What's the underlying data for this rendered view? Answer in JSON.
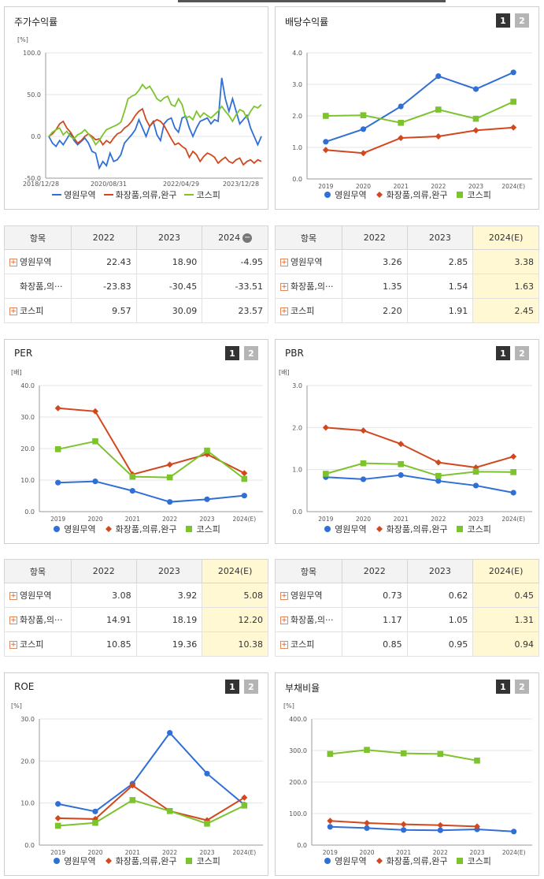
{
  "colors": {
    "s1": "#2f6fd6",
    "s2": "#d2481e",
    "s3": "#7cc32e"
  },
  "legend": [
    "영원무역",
    "화장품,의류,완구",
    "코스피"
  ],
  "buttons": [
    "1",
    "2"
  ],
  "stock": {
    "title": "주가수익률",
    "unit": "[%]",
    "yticks": [
      "100.0",
      "50.0",
      "0.0",
      "-50.0"
    ],
    "xticks": [
      "2018/12/28",
      "2020/08/31",
      "2022/04/29",
      "2023/12/28"
    ],
    "table": {
      "header": [
        "항목",
        "2022",
        "2023",
        "2024"
      ],
      "rows": [
        {
          "name": "영원무역",
          "v": [
            "22.43",
            "18.90",
            "-4.95"
          ]
        },
        {
          "name": "화장품,의···",
          "v": [
            "-23.83",
            "-30.45",
            "-33.51"
          ]
        },
        {
          "name": "코스피",
          "v": [
            "9.57",
            "30.09",
            "23.57"
          ]
        }
      ]
    }
  },
  "div": {
    "title": "배당수익률",
    "table": {
      "header": [
        "항목",
        "2022",
        "2023",
        "2024(E)"
      ],
      "rows": [
        {
          "name": "영원무역",
          "v": [
            "3.26",
            "2.85",
            "3.38"
          ]
        },
        {
          "name": "화장품,의···",
          "v": [
            "1.35",
            "1.54",
            "1.63"
          ]
        },
        {
          "name": "코스피",
          "v": [
            "2.20",
            "1.91",
            "2.45"
          ]
        }
      ]
    }
  },
  "per": {
    "title": "PER",
    "table": {
      "header": [
        "항목",
        "2022",
        "2023",
        "2024(E)"
      ],
      "rows": [
        {
          "name": "영원무역",
          "v": [
            "3.08",
            "3.92",
            "5.08"
          ]
        },
        {
          "name": "화장품,의···",
          "v": [
            "14.91",
            "18.19",
            "12.20"
          ]
        },
        {
          "name": "코스피",
          "v": [
            "10.85",
            "19.36",
            "10.38"
          ]
        }
      ]
    }
  },
  "pbr": {
    "title": "PBR",
    "table": {
      "header": [
        "항목",
        "2022",
        "2023",
        "2024(E)"
      ],
      "rows": [
        {
          "name": "영원무역",
          "v": [
            "0.73",
            "0.62",
            "0.45"
          ]
        },
        {
          "name": "화장품,의···",
          "v": [
            "1.17",
            "1.05",
            "1.31"
          ]
        },
        {
          "name": "코스피",
          "v": [
            "0.85",
            "0.95",
            "0.94"
          ]
        }
      ]
    }
  },
  "roe": {
    "title": "ROE"
  },
  "debt": {
    "title": "부채비율"
  },
  "chart_data": [
    {
      "id": "stock",
      "type": "line",
      "ylabel": "[%]",
      "ylim": [
        -50,
        100
      ],
      "yticks": [
        100,
        50,
        0,
        -50
      ],
      "series": [
        {
          "name": "영원무역",
          "values": [
            0,
            -8,
            -12,
            -5,
            -10,
            -3,
            4,
            -5,
            -10,
            -6,
            -2,
            -8,
            -18,
            -20,
            -38,
            -30,
            -35,
            -20,
            -30,
            -28,
            -22,
            -8,
            -3,
            2,
            8,
            20,
            10,
            0,
            12,
            18,
            2,
            -5,
            15,
            20,
            22,
            10,
            5,
            22,
            24,
            10,
            0,
            10,
            18,
            20,
            22,
            15,
            20,
            18,
            70,
            45,
            30,
            45,
            30,
            15,
            20,
            25,
            10,
            0,
            -10,
            0
          ]
        },
        {
          "name": "화장품,의류,완구",
          "values": [
            0,
            3,
            8,
            15,
            18,
            10,
            5,
            -2,
            -8,
            -5,
            0,
            3,
            0,
            -4,
            -3,
            -10,
            -5,
            -8,
            -2,
            3,
            5,
            10,
            13,
            18,
            25,
            30,
            33,
            20,
            12,
            17,
            20,
            18,
            13,
            5,
            -3,
            -10,
            -8,
            -12,
            -15,
            -25,
            -18,
            -22,
            -30,
            -24,
            -20,
            -22,
            -25,
            -32,
            -28,
            -25,
            -30,
            -32,
            -28,
            -26,
            -34,
            -30,
            -28,
            -32,
            -28,
            -30
          ]
        },
        {
          "name": "코스피",
          "values": [
            0,
            5,
            8,
            10,
            2,
            6,
            0,
            -3,
            2,
            4,
            8,
            3,
            -2,
            -10,
            -5,
            2,
            8,
            10,
            12,
            14,
            17,
            30,
            45,
            48,
            50,
            55,
            62,
            57,
            60,
            53,
            45,
            42,
            46,
            48,
            38,
            36,
            45,
            38,
            22,
            24,
            20,
            30,
            23,
            28,
            25,
            22,
            26,
            30,
            36,
            30,
            25,
            18,
            26,
            32,
            30,
            22,
            30,
            36,
            34,
            38
          ]
        }
      ]
    },
    {
      "id": "div",
      "type": "line",
      "ylim": [
        0,
        4
      ],
      "yticks": [
        4.0,
        3.0,
        2.0,
        1.0,
        0.0
      ],
      "categories": [
        "2019",
        "2020",
        "2021",
        "2022",
        "2023",
        "2024(E)"
      ],
      "series": [
        {
          "name": "영원무역",
          "values": [
            1.18,
            1.58,
            2.3,
            3.26,
            2.85,
            3.38
          ]
        },
        {
          "name": "화장품,의류,완구",
          "values": [
            0.92,
            0.82,
            1.3,
            1.35,
            1.54,
            1.63
          ]
        },
        {
          "name": "코스피",
          "values": [
            2.0,
            2.02,
            1.78,
            2.2,
            1.91,
            2.45
          ]
        }
      ]
    },
    {
      "id": "per",
      "type": "line",
      "ylabel": "[배]",
      "ylim": [
        0,
        40
      ],
      "yticks": [
        40.0,
        30.0,
        20.0,
        10.0,
        0.0
      ],
      "categories": [
        "2019",
        "2020",
        "2021",
        "2022",
        "2023",
        "2024(E)"
      ],
      "series": [
        {
          "name": "영원무역",
          "values": [
            9.2,
            9.6,
            6.6,
            3.08,
            3.92,
            5.08
          ]
        },
        {
          "name": "화장품,의류,완구",
          "values": [
            32.8,
            31.8,
            11.8,
            14.91,
            18.19,
            12.2
          ]
        },
        {
          "name": "코스피",
          "values": [
            19.8,
            22.3,
            11.1,
            10.85,
            19.36,
            10.38
          ]
        }
      ]
    },
    {
      "id": "pbr",
      "type": "line",
      "ylabel": "[배]",
      "ylim": [
        0,
        3
      ],
      "yticks": [
        3.0,
        2.0,
        1.0,
        0.0
      ],
      "categories": [
        "2019",
        "2020",
        "2021",
        "2022",
        "2023",
        "2024(E)"
      ],
      "series": [
        {
          "name": "영원무역",
          "values": [
            0.82,
            0.77,
            0.87,
            0.73,
            0.62,
            0.45
          ]
        },
        {
          "name": "화장품,의류,완구",
          "values": [
            2.0,
            1.93,
            1.61,
            1.17,
            1.05,
            1.31
          ]
        },
        {
          "name": "코스피",
          "values": [
            0.9,
            1.15,
            1.13,
            0.85,
            0.95,
            0.94
          ]
        }
      ]
    },
    {
      "id": "roe",
      "type": "line",
      "ylabel": "[%]",
      "ylim": [
        0,
        30
      ],
      "yticks": [
        30.0,
        20.0,
        10.0,
        0.0
      ],
      "categories": [
        "2019",
        "2020",
        "2021",
        "2022",
        "2023",
        "2024(E)"
      ],
      "series": [
        {
          "name": "영원무역",
          "values": [
            9.8,
            8.0,
            14.6,
            26.7,
            17.0,
            9.6
          ]
        },
        {
          "name": "화장품,의류,완구",
          "values": [
            6.4,
            6.2,
            14.2,
            8.1,
            5.9,
            11.3
          ]
        },
        {
          "name": "코스피",
          "values": [
            4.6,
            5.3,
            10.7,
            8.1,
            5.1,
            9.4
          ]
        }
      ]
    },
    {
      "id": "debt",
      "type": "line",
      "ylabel": "[%]",
      "ylim": [
        0,
        400
      ],
      "yticks": [
        400.0,
        300.0,
        200.0,
        100.0,
        0.0
      ],
      "categories": [
        "2019",
        "2020",
        "2021",
        "2022",
        "2023",
        "2024(E)"
      ],
      "series": [
        {
          "name": "영원무역",
          "values": [
            58,
            54,
            48,
            47,
            50,
            43
          ]
        },
        {
          "name": "화장품,의류,완구",
          "values": [
            77,
            70,
            66,
            63,
            59,
            null
          ]
        },
        {
          "name": "코스피",
          "values": [
            289,
            302,
            291,
            289,
            268,
            null
          ]
        }
      ]
    }
  ]
}
